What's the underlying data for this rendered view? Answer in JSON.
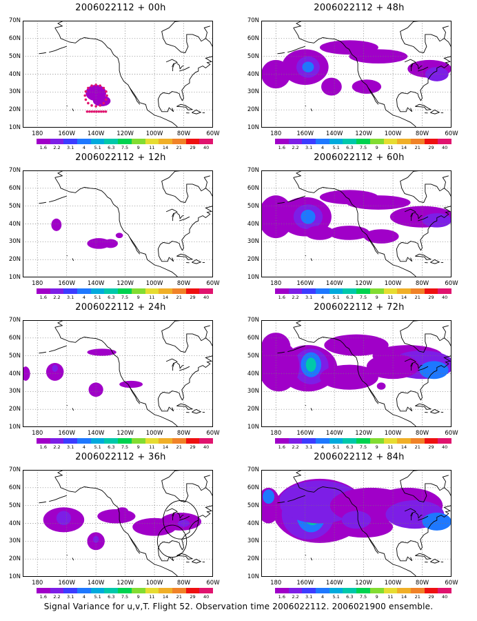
{
  "caption": "Signal Variance for u,v,T. Flight 52. Observation time 2006022112. 2006021900 ensemble.",
  "map": {
    "lat_labels": [
      "70N",
      "60N",
      "50N",
      "40N",
      "30N",
      "20N",
      "10N"
    ],
    "lon_labels": [
      "180",
      "160W",
      "140W",
      "120W",
      "100W",
      "80W",
      "60W"
    ],
    "lon_range": [
      -190,
      -60
    ],
    "lat_range": [
      10,
      70
    ]
  },
  "colorbar": {
    "labels": [
      "1.6",
      "2.2",
      "3.1",
      "4",
      "5.1",
      "6.3",
      "7.5",
      "9",
      "11",
      "14",
      "21",
      "29",
      "40"
    ],
    "colors": [
      "#a000c8",
      "#7d1ee6",
      "#3c3cff",
      "#1e78ff",
      "#00aadc",
      "#00c8aa",
      "#00d250",
      "#82dc32",
      "#e6dc32",
      "#f0af28",
      "#f08228",
      "#ee1010",
      "#e0146e"
    ]
  },
  "panels": [
    {
      "title": "2006022112 + 00h",
      "lead_hours": 0,
      "circle": false
    },
    {
      "title": "2006022112 + 48h",
      "lead_hours": 48,
      "circle": false
    },
    {
      "title": "2006022112 + 12h",
      "lead_hours": 12,
      "circle": false
    },
    {
      "title": "2006022112 + 60h",
      "lead_hours": 60,
      "circle": false
    },
    {
      "title": "2006022112 + 24h",
      "lead_hours": 24,
      "circle": false
    },
    {
      "title": "2006022112 + 72h",
      "lead_hours": 72,
      "circle": false
    },
    {
      "title": "2006022112 + 36h",
      "lead_hours": 36,
      "circle": true
    },
    {
      "title": "2006022112 + 84h",
      "lead_hours": 84,
      "circle": false
    }
  ]
}
